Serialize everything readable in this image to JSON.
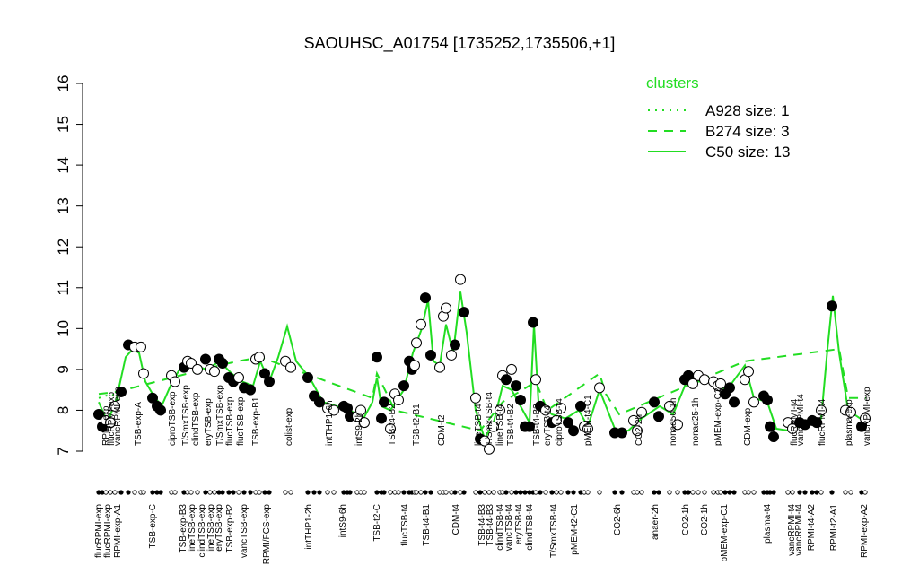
{
  "chart_data": {
    "type": "line",
    "title": "SAOUHSC_A01754 [1735252,1735506,+1]",
    "ylim": [
      7,
      16
    ],
    "yticks": [
      7,
      8,
      9,
      10,
      11,
      12,
      13,
      14,
      15,
      16
    ],
    "xlim": [
      0,
      880
    ],
    "color": "#22dd22",
    "legend_title": "clusters",
    "series": [
      {
        "name": "A928 size: 1",
        "linestyle": "dotted",
        "x": [
          10,
          25,
          35
        ],
        "values": [
          8.3,
          8.4,
          8.2
        ]
      },
      {
        "name": "B274 size: 3",
        "linestyle": "dashed",
        "x": [
          10,
          30,
          145,
          165,
          190,
          315,
          320,
          340,
          435,
          460,
          497,
          510,
          568,
          575,
          590,
          730,
          835,
          845,
          865
        ],
        "values": [
          8.4,
          8.45,
          9.1,
          9.2,
          9.3,
          8.3,
          8.9,
          8.0,
          7.5,
          8.2,
          8.7,
          8.0,
          8.9,
          8.4,
          7.9,
          9.2,
          9.5,
          8.3,
          8.3
        ]
      },
      {
        "name": "C50 size: 13",
        "linestyle": "solid",
        "x": [
          10,
          20,
          30,
          40,
          48,
          55,
          62,
          70,
          80,
          90,
          100,
          115,
          130,
          145,
          158,
          170,
          182,
          190,
          200,
          210,
          220,
          230,
          245,
          260,
          275,
          290,
          305,
          315,
          320,
          325,
          335,
          350,
          360,
          370,
          377,
          383,
          390,
          397,
          405,
          413,
          420,
          430,
          440,
          450,
          460,
          470,
          480,
          490,
          495,
          500,
          515,
          530,
          545,
          555,
          568,
          585,
          600,
          615,
          635,
          650,
          665,
          690,
          710,
          730,
          740,
          755,
          765,
          780,
          800,
          815,
          822,
          828,
          835,
          845,
          865
        ],
        "values": [
          8.2,
          7.7,
          8.3,
          9.3,
          9.5,
          9.4,
          8.7,
          8.4,
          8.1,
          8.6,
          9.0,
          9.1,
          9.0,
          9.2,
          8.9,
          8.7,
          8.6,
          9.2,
          8.7,
          9.3,
          10.05,
          9.2,
          8.8,
          8.2,
          8.1,
          8.0,
          7.8,
          8.2,
          8.8,
          8.1,
          8.0,
          8.5,
          9.4,
          10.0,
          10.7,
          9.2,
          9.1,
          10.1,
          9.4,
          10.9,
          9.9,
          8.0,
          7.3,
          7.7,
          8.6,
          8.5,
          8.1,
          7.7,
          10.1,
          8.2,
          7.9,
          7.8,
          8.0,
          7.6,
          8.5,
          7.55,
          7.5,
          7.8,
          8.1,
          7.9,
          8.7,
          8.7,
          8.5,
          9.1,
          8.3,
          8.2,
          7.55,
          7.5,
          7.7,
          7.8,
          9.5,
          10.8,
          9.4,
          8.0,
          7.7
        ]
      }
    ],
    "points": {
      "x": [
        10,
        14,
        18,
        23,
        28,
        35,
        43,
        50,
        57,
        60,
        70,
        75,
        79,
        91,
        95,
        105,
        109,
        113,
        120,
        129,
        134,
        139,
        144,
        148,
        155,
        160,
        166,
        172,
        179,
        185,
        189,
        195,
        200,
        218,
        224,
        243,
        250,
        256,
        265,
        272,
        283,
        287,
        290,
        298,
        302,
        306,
        320,
        325,
        328,
        335,
        340,
        344,
        350,
        356,
        359,
        362,
        364,
        369,
        374,
        380,
        390,
        394,
        397,
        403,
        407,
        413,
        417,
        430,
        435,
        440,
        445,
        450,
        457,
        460,
        464,
        470,
        475,
        480,
        485,
        490,
        494,
        497,
        502,
        508,
        515,
        520,
        525,
        533,
        539,
        547,
        551,
        555,
        568,
        585,
        593,
        606,
        610,
        615,
        629,
        634,
        646,
        655,
        663,
        667,
        672,
        678,
        685,
        695,
        700,
        703,
        708,
        713,
        718,
        730,
        734,
        740,
        751,
        755,
        758,
        762,
        778,
        783,
        791,
        797,
        805,
        810,
        815,
        827,
        842,
        848,
        860,
        864
      ],
      "values": [
        7.9,
        7.6,
        7.75,
        7.7,
        8.1,
        8.45,
        9.6,
        9.55,
        9.55,
        8.9,
        8.3,
        8.1,
        8.0,
        8.85,
        8.7,
        9.05,
        9.2,
        9.15,
        9.0,
        9.25,
        9.0,
        8.95,
        9.25,
        9.15,
        8.8,
        8.7,
        8.8,
        8.55,
        8.5,
        9.25,
        9.3,
        8.9,
        8.7,
        9.2,
        9.05,
        8.8,
        8.35,
        8.2,
        8.05,
        8.0,
        8.1,
        8.05,
        7.85,
        7.85,
        8.0,
        7.7,
        9.3,
        7.8,
        8.2,
        7.55,
        8.4,
        8.25,
        8.6,
        9.2,
        9.0,
        9.1,
        9.65,
        10.1,
        10.75,
        9.35,
        9.05,
        10.3,
        10.5,
        9.35,
        9.6,
        11.2,
        10.4,
        8.3,
        7.3,
        7.25,
        7.05,
        7.6,
        8.0,
        8.85,
        8.75,
        9.0,
        8.6,
        8.25,
        7.6,
        7.6,
        10.15,
        8.75,
        8.1,
        8.0,
        7.7,
        7.75,
        8.05,
        7.7,
        7.5,
        8.1,
        7.6,
        7.55,
        8.55,
        7.45,
        7.45,
        7.75,
        7.5,
        7.95,
        8.2,
        7.85,
        8.1,
        7.65,
        8.75,
        8.85,
        8.65,
        8.85,
        8.75,
        8.7,
        8.6,
        8.65,
        8.4,
        8.55,
        8.2,
        8.75,
        8.95,
        8.2,
        8.35,
        8.25,
        7.6,
        7.35,
        7.7,
        7.55,
        7.7,
        7.65,
        7.75,
        7.7,
        8.0,
        10.55,
        8.0,
        7.95,
        7.6,
        7.8
      ],
      "filled": [
        true,
        true,
        false,
        false,
        false,
        true,
        true,
        false,
        false,
        false,
        true,
        true,
        true,
        false,
        false,
        true,
        false,
        false,
        false,
        true,
        false,
        false,
        true,
        true,
        true,
        true,
        false,
        true,
        true,
        false,
        false,
        true,
        true,
        false,
        false,
        true,
        true,
        true,
        false,
        false,
        true,
        true,
        true,
        false,
        false,
        false,
        true,
        true,
        true,
        false,
        false,
        false,
        true,
        true,
        true,
        false,
        false,
        false,
        true,
        true,
        false,
        false,
        false,
        false,
        true,
        false,
        true,
        false,
        true,
        false,
        false,
        false,
        false,
        false,
        true,
        false,
        true,
        true,
        true,
        true,
        true,
        false,
        true,
        false,
        true,
        false,
        false,
        true,
        true,
        true,
        false,
        false,
        false,
        true,
        true,
        false,
        false,
        false,
        true,
        true,
        false,
        false,
        true,
        true,
        false,
        false,
        false,
        false,
        false,
        false,
        true,
        true,
        true,
        false,
        false,
        false,
        true,
        true,
        true,
        true,
        false,
        false,
        true,
        true,
        true,
        true,
        false,
        true,
        false,
        false,
        true,
        false
      ]
    },
    "labels_top": {
      "x": [
        18,
        24,
        31,
        54,
        92,
        107,
        118,
        132,
        145,
        156,
        168,
        185,
        222,
        267,
        300,
        337,
        364,
        392,
        433,
        445,
        457,
        469,
        498,
        510,
        523,
        555,
        612,
        650,
        675,
        700,
        733,
        785,
        792,
        816,
        846,
        866
      ],
      "text": [
        "RPMI-exp",
        "flucRPMI-exp",
        "vancRPMI-exp",
        "TSB-exp-A",
        "ciproTSB-exp",
        "T/SmxTSB-exp",
        "clindTSB-exp",
        "eryTSB-exp",
        "T/SmxTSB-exp",
        "flucTSB-exp",
        "flucTSB-exp",
        "TSB-exp-B1",
        "colist-exp",
        "intTHP1-6h",
        "intS9-2h",
        "TSB-t4-B2",
        "TSB-t2-B1",
        "CDM-t2",
        "lineTSB-t4",
        "T/SmxTSB-t4",
        "lineTSB-t4",
        "TSB-t4-B2",
        "TSB-t4-B3",
        "eryTSB-t4",
        "ciproTSB-t4",
        "pMEM-t4-C1",
        "CO2-2h",
        "nonad50-1h",
        "nonad25-1h",
        "pMEM-exp-C2",
        "CDM-exp",
        "flucRPMI-t4",
        "vancRPMI-t4",
        "flucRPMI-t4",
        "plasma-exp",
        "vancRPMI-exp"
      ]
    },
    "labels_bottom": {
      "x": [
        10,
        20,
        31,
        70,
        104,
        114,
        125,
        135,
        144,
        156,
        172,
        197,
        244,
        282,
        320,
        351,
        375,
        408,
        437,
        446,
        457,
        467,
        478,
        490,
        517,
        540,
        588,
        630,
        664,
        685,
        707,
        755,
        782,
        790,
        804,
        829,
        863
      ],
      "text": [
        "flucRPMI-exp",
        "flucRPMI-exp",
        "RPMI-exp-A1",
        "TSB-exp-C",
        "TSB-exp-B3",
        "lineTSB-exp",
        "clindTSB-exp",
        "lineTSB-exp",
        "eryTSB-exp",
        "TSB-exp-B2",
        "vancTSB-exp",
        "RPMI/FCS-exp",
        "intTHP1-2h",
        "intS9-6h",
        "TSB-t2-C",
        "flucTSB-t4",
        "TSB-t4-B1",
        "CDM-t4",
        "TSB-t4-B3",
        "TSB-t4-B3",
        "clindTSB-t4",
        "vancTSB-t4",
        "eryTSB-t4",
        "clindTSB-t4",
        "T/SmxTSB-t4",
        "pMEM-t2-C1",
        "CO2-6h",
        "anaer-2h",
        "CO2-1h",
        "CO2-1h",
        "pMEM-exp-C1",
        "plasma-t4",
        "vancRPMI-t4",
        "vancRPMI-t4",
        "RPMI-t4-A2",
        "RPMI-t2-A1",
        "RPMI-exp-A2"
      ]
    }
  }
}
